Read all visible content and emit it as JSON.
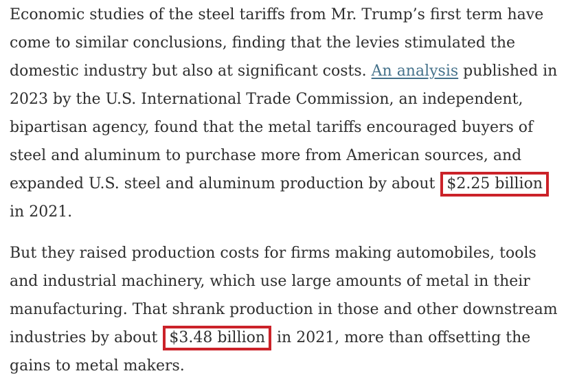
{
  "colors": {
    "background": "#ffffff",
    "text": "#2e2e2e",
    "link": "#44718a",
    "highlight_border": "#cb2229"
  },
  "article": {
    "paragraphs": [
      {
        "segments": [
          {
            "type": "text",
            "text": "Economic studies of the steel tariffs from Mr. Trump’s first term have come to similar conclusions, finding that the levies stimulated the domestic industry but also at significant costs. "
          },
          {
            "type": "link",
            "name": "an-analysis-link",
            "text": "An analysis"
          },
          {
            "type": "text",
            "text": " published in 2023 by the U.S. International Trade Commission, an independent, bipartisan agency, found that the metal tariffs encouraged buyers of steel and aluminum to purchase more from American sources, and expanded U.S. steel and aluminum production by about "
          },
          {
            "type": "boxed",
            "name": "highlight-box-2-25-billion",
            "text": "$2.25 billion"
          },
          {
            "type": "text",
            "text": " in 2021."
          }
        ]
      },
      {
        "segments": [
          {
            "type": "text",
            "text": "But they raised production costs for firms making automobiles, tools and industrial machinery, which use large amounts of metal in their manufacturing. That shrank production in those and other downstream industries by about "
          },
          {
            "type": "boxed",
            "name": "highlight-box-3-48-billion",
            "text": "$3.48 billion"
          },
          {
            "type": "text",
            "text": " in 2021, more than offsetting the gains to metal makers."
          }
        ]
      }
    ]
  }
}
